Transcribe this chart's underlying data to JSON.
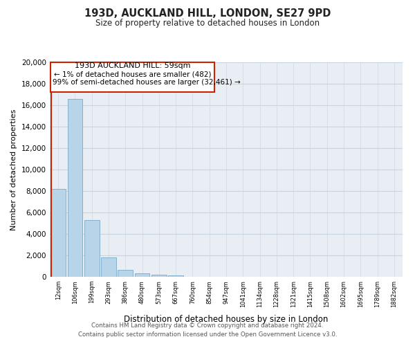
{
  "title": "193D, AUCKLAND HILL, LONDON, SE27 9PD",
  "subtitle": "Size of property relative to detached houses in London",
  "xlabel": "Distribution of detached houses by size in London",
  "ylabel": "Number of detached properties",
  "bar_color": "#b8d4e8",
  "bar_edge_color": "#7aaac8",
  "highlight_color": "#cc2200",
  "grid_color": "#c8d4e0",
  "bg_color": "#e8eef4",
  "categories": [
    "12sqm",
    "106sqm",
    "199sqm",
    "293sqm",
    "386sqm",
    "480sqm",
    "573sqm",
    "667sqm",
    "760sqm",
    "854sqm",
    "947sqm",
    "1041sqm",
    "1134sqm",
    "1228sqm",
    "1321sqm",
    "1415sqm",
    "1508sqm",
    "1602sqm",
    "1695sqm",
    "1789sqm",
    "1882sqm"
  ],
  "values": [
    8200,
    16600,
    5300,
    1800,
    650,
    300,
    180,
    130,
    0,
    0,
    0,
    0,
    0,
    0,
    0,
    0,
    0,
    0,
    0,
    0,
    0
  ],
  "ylim": [
    0,
    20000
  ],
  "yticks": [
    0,
    2000,
    4000,
    6000,
    8000,
    10000,
    12000,
    14000,
    16000,
    18000,
    20000
  ],
  "annotation_text_line1": "193D AUCKLAND HILL: 59sqm",
  "annotation_text_line2": "← 1% of detached houses are smaller (482)",
  "annotation_text_line3": "99% of semi-detached houses are larger (32,461) →",
  "footer_line1": "Contains HM Land Registry data © Crown copyright and database right 2024.",
  "footer_line2": "Contains public sector information licensed under the Open Government Licence v3.0."
}
